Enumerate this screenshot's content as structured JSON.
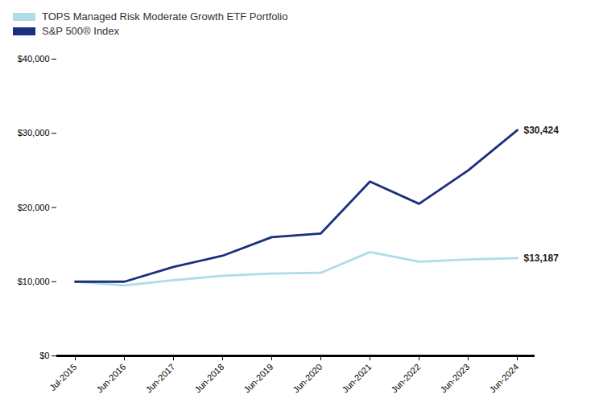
{
  "chart_data": {
    "type": "line",
    "categories": [
      "Jul-2015",
      "Jun-2016",
      "Jun-2017",
      "Jun-2018",
      "Jun-2019",
      "Jun-2020",
      "Jun-2021",
      "Jun-2022",
      "Jun-2023",
      "Jun-2024"
    ],
    "series": [
      {
        "name": "TOPS Managed Risk Moderate Growth ETF Portfolio",
        "color": "#b0dce8",
        "values": [
          10000,
          9500,
          10200,
          10800,
          11100,
          11200,
          14000,
          12700,
          13000,
          13187
        ]
      },
      {
        "name": "S&P 500® Index",
        "color": "#1b2f7e",
        "values": [
          10000,
          10000,
          12000,
          13500,
          16000,
          16500,
          23500,
          20500,
          25000,
          30424
        ]
      }
    ],
    "annotations": [
      {
        "text": "$13,187",
        "x": "Jun-2024",
        "y": 13187
      },
      {
        "text": "$30,424",
        "x": "Jun-2024",
        "y": 30424
      }
    ],
    "ylim": [
      0,
      40000
    ],
    "yticks": [
      {
        "value": 0,
        "label": "$0"
      },
      {
        "value": 10000,
        "label": "$10,000"
      },
      {
        "value": 20000,
        "label": "$20,000"
      },
      {
        "value": 30000,
        "label": "$30,000"
      },
      {
        "value": 40000,
        "label": "$40,000"
      }
    ],
    "grid": false,
    "legend": "upper left"
  }
}
